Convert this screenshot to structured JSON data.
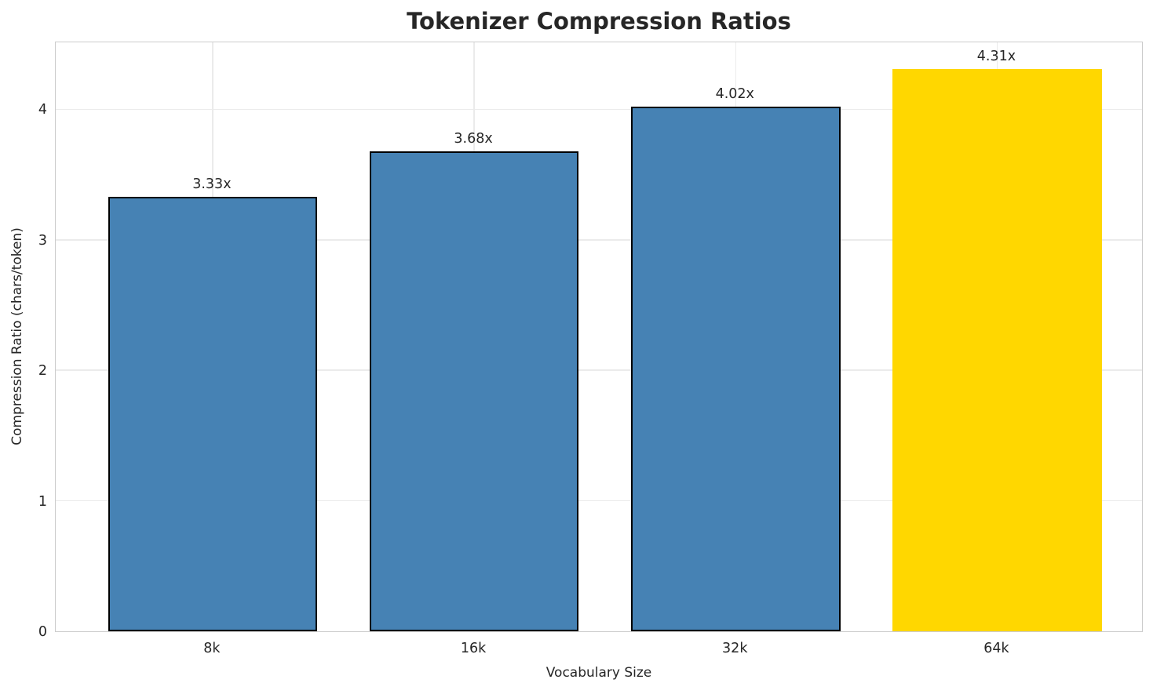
{
  "chart_data": {
    "type": "bar",
    "title": "Tokenizer Compression Ratios",
    "xlabel": "Vocabulary Size",
    "ylabel": "Compression Ratio (chars/token)",
    "categories": [
      "8k",
      "16k",
      "32k",
      "64k"
    ],
    "values": [
      3.33,
      3.68,
      4.02,
      4.31
    ],
    "bar_labels": [
      "3.33x",
      "3.68x",
      "4.02x",
      "4.31x"
    ],
    "bar_colors": [
      "#4682b4",
      "#4682b4",
      "#4682b4",
      "#ffd700"
    ],
    "bar_edge_colors": [
      "#000000",
      "#000000",
      "#000000",
      "none"
    ],
    "bar_color_default": "#4682b4",
    "highlight_color": "#ffd700",
    "yticks": [
      0,
      1,
      2,
      3,
      4
    ],
    "ylim": [
      0,
      4.5255
    ],
    "xlim": [
      -0.6,
      3.56
    ],
    "bar_width_data_units": 0.8,
    "grid": true,
    "legend_position": "none",
    "grid_color": "#ebebeb",
    "spine_color": "#cccccc",
    "text_color": "#262626"
  }
}
